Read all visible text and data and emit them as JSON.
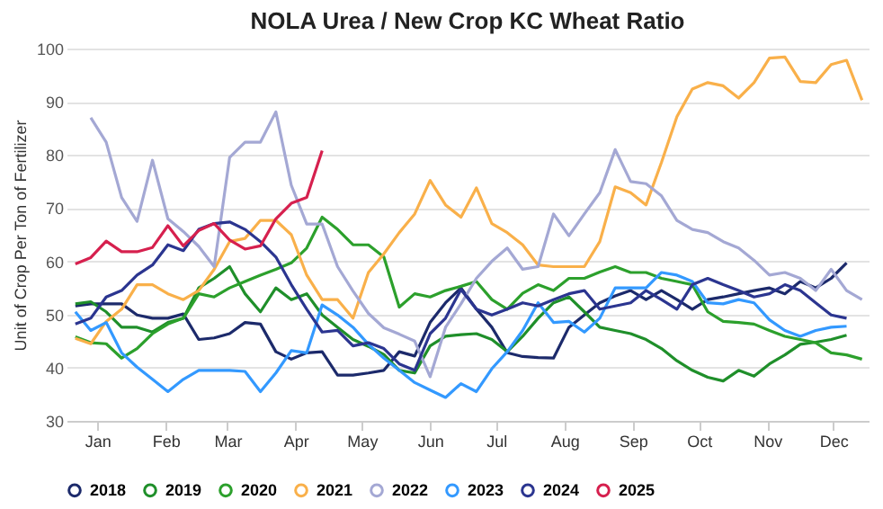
{
  "chart_data": {
    "type": "line",
    "title": "NOLA Urea / New Crop KC Wheat Ratio",
    "ylabel": "Unit of Crop Per Ton of Fertilizer",
    "x": [
      "--01-05",
      "--01-12",
      "--01-19",
      "--01-26",
      "--02-02",
      "--02-09",
      "--02-16",
      "--02-23",
      "--03-02",
      "--03-09",
      "--03-16",
      "--03-23",
      "--03-30",
      "--04-06",
      "--04-13",
      "--04-20",
      "--04-27",
      "--05-04",
      "--05-11",
      "--05-18",
      "--05-25",
      "--06-01",
      "--06-08",
      "--06-15",
      "--06-22",
      "--06-29",
      "--07-06",
      "--07-13",
      "--07-20",
      "--07-27",
      "--08-03",
      "--08-10",
      "--08-17",
      "--08-24",
      "--08-31",
      "--09-07",
      "--09-14",
      "--09-21",
      "--09-28",
      "--10-05",
      "--10-12",
      "--10-19",
      "--10-26",
      "--11-02",
      "--11-09",
      "--11-16",
      "--11-23",
      "--11-30",
      "--12-07",
      "--12-14",
      "--12-21",
      "--12-28"
    ],
    "xlim": [
      "--01-01",
      "--12-31"
    ],
    "xticks": [
      {
        "value": "--01-15",
        "label": "Jan"
      },
      {
        "value": "--02-15",
        "label": "Feb"
      },
      {
        "value": "--03-15",
        "label": "Mar"
      },
      {
        "value": "--04-15",
        "label": "Apr"
      },
      {
        "value": "--05-15",
        "label": "May"
      },
      {
        "value": "--06-15",
        "label": "Jun"
      },
      {
        "value": "--07-15",
        "label": "Jul"
      },
      {
        "value": "--08-15",
        "label": "Aug"
      },
      {
        "value": "--09-15",
        "label": "Sep"
      },
      {
        "value": "--10-15",
        "label": "Oct"
      },
      {
        "value": "--11-15",
        "label": "Nov"
      },
      {
        "value": "--12-15",
        "label": "Dec"
      }
    ],
    "ylim": [
      30,
      100
    ],
    "yticks": [
      30,
      40,
      50,
      60,
      70,
      80,
      90,
      100
    ],
    "grid": "y",
    "legend": "bottom",
    "marker": "none",
    "line_style": "solid",
    "series": [
      {
        "name": "2018",
        "color": "#1c2a6b",
        "values": [
          51.6,
          52,
          52,
          52,
          49.9,
          49.3,
          49.3,
          50.1,
          45.3,
          45.6,
          46.4,
          48.5,
          48.2,
          43,
          41.6,
          42.8,
          43,
          38.6,
          38.6,
          39,
          39.5,
          43,
          42.2,
          48.5,
          52.2,
          55,
          51,
          47.6,
          42.8,
          42.1,
          41.9,
          41.8,
          47.6,
          49.9,
          52.2,
          53.5,
          54.5,
          52.8,
          54.5,
          52.8,
          51,
          52.8,
          53.3,
          53.9,
          54.5,
          55,
          53.9,
          56.2,
          55,
          56.8,
          59.7,
          null
        ]
      },
      {
        "name": "2019",
        "color": "#1f8f2a",
        "values": [
          52,
          52.4,
          50.5,
          47.6,
          47.6,
          46.7,
          48.5,
          49.3,
          55,
          56.8,
          59,
          53.9,
          50.5,
          55,
          52.8,
          53.9,
          49.9,
          47.6,
          45.3,
          44,
          42.5,
          39.5,
          39,
          44.1,
          45.9,
          46.2,
          46.4,
          45.3,
          43,
          45.9,
          49.3,
          52.2,
          53.3,
          50.5,
          47.6,
          47,
          46.4,
          45.3,
          43.6,
          41.3,
          39.5,
          38.2,
          37.5,
          39.5,
          38.4,
          40.7,
          42.4,
          44.4,
          44.8,
          45.3,
          46.1,
          null
        ]
      },
      {
        "name": "2020",
        "color": "#2ca02c",
        "values": [
          45.8,
          44.7,
          44.5,
          41.8,
          43.6,
          46.4,
          48.2,
          49.3,
          53.9,
          53.3,
          55,
          56.2,
          57.4,
          58.5,
          59.7,
          62.5,
          68.3,
          66,
          63.1,
          63.1,
          60.8,
          51.4,
          53.9,
          53.3,
          54.5,
          55.3,
          56.2,
          52.8,
          51,
          54,
          55.6,
          54.5,
          56.8,
          56.8,
          58,
          59,
          57.9,
          57.9,
          56.8,
          56.2,
          55.6,
          50.5,
          48.7,
          48.5,
          48.2,
          47,
          45.9,
          45.3,
          44.7,
          42.8,
          42.4,
          41.6
        ]
      },
      {
        "name": "2021",
        "color": "#f9b04a",
        "values": [
          45.5,
          44.5,
          48.7,
          51,
          55.6,
          55.6,
          53.9,
          52.8,
          54.5,
          58.5,
          63.7,
          64.3,
          67.7,
          67.7,
          65,
          57.4,
          52.8,
          52.8,
          49.3,
          57.9,
          61.4,
          65.4,
          68.9,
          75.2,
          70.6,
          68.3,
          73.8,
          67.1,
          65.4,
          63.1,
          59.3,
          59,
          59,
          59,
          63.7,
          74,
          72.9,
          70.6,
          78.6,
          87.2,
          92.4,
          93.6,
          93,
          90.7,
          93.6,
          98.2,
          98.4,
          93.8,
          93.6,
          97,
          97.8,
          90.3
        ]
      },
      {
        "name": "2022",
        "color": "#a4a8d4",
        "values": [
          null,
          87,
          82.4,
          72,
          67.5,
          79,
          68,
          65.6,
          62.8,
          59,
          79.5,
          82.4,
          82.4,
          88.1,
          74.3,
          67,
          67,
          59,
          54.4,
          50.2,
          47.5,
          46.3,
          45,
          38.3,
          47.6,
          52,
          56.8,
          60,
          62.5,
          58.5,
          59,
          68.9,
          64.8,
          68.9,
          72.9,
          81,
          75,
          74.6,
          72.3,
          67.7,
          66,
          65.4,
          63.7,
          62.5,
          60.2,
          57.4,
          57.9,
          56.8,
          54.5,
          58.5,
          54.5,
          52.8
        ]
      },
      {
        "name": "2023",
        "color": "#3399ff",
        "values": [
          50.5,
          47,
          48.5,
          42.8,
          40.1,
          37.8,
          35.5,
          37.8,
          39.5,
          39.5,
          39.5,
          39.3,
          35.5,
          39,
          43.2,
          42.8,
          51.8,
          49.9,
          47.6,
          44.4,
          41.8,
          39.5,
          37.2,
          35.8,
          34.4,
          37,
          35.5,
          39.8,
          43,
          47,
          52.2,
          48.5,
          48.7,
          46.7,
          49.3,
          55,
          55,
          55,
          57.9,
          57.4,
          56.2,
          52.2,
          52,
          52.8,
          52.2,
          49,
          47,
          45.9,
          47,
          47.6,
          47.8,
          null
        ]
      },
      {
        "name": "2024",
        "color": "#2b3590",
        "values": [
          48.2,
          49.3,
          53.3,
          54.5,
          57.4,
          59.3,
          63.1,
          62,
          66,
          67.1,
          67.4,
          66,
          63.7,
          60.8,
          55.6,
          51,
          46.7,
          47,
          44.1,
          44.7,
          43.6,
          40.7,
          39.5,
          46.4,
          49.3,
          54.7,
          51,
          49.9,
          51,
          52.2,
          51.6,
          52.8,
          53.9,
          54.5,
          51,
          51.6,
          52.2,
          54.5,
          52.8,
          51,
          55.6,
          56.8,
          55.6,
          54.5,
          53.3,
          53.9,
          55.6,
          54.5,
          52.2,
          49.9,
          49.3,
          null
        ]
      },
      {
        "name": "2025",
        "color": "#d6204e",
        "values": [
          59.5,
          60.7,
          63.8,
          61.8,
          61.8,
          62.6,
          66.7,
          62.9,
          65.8,
          67.1,
          64,
          62.3,
          62.9,
          68,
          70.9,
          72,
          80.8,
          null,
          null,
          null,
          null,
          null,
          null,
          null,
          null,
          null,
          null,
          null,
          null,
          null,
          null,
          null,
          null,
          null,
          null,
          null,
          null,
          null,
          null,
          null,
          null,
          null,
          null,
          null,
          null,
          null,
          null,
          null,
          null,
          null,
          null,
          null
        ]
      }
    ]
  }
}
